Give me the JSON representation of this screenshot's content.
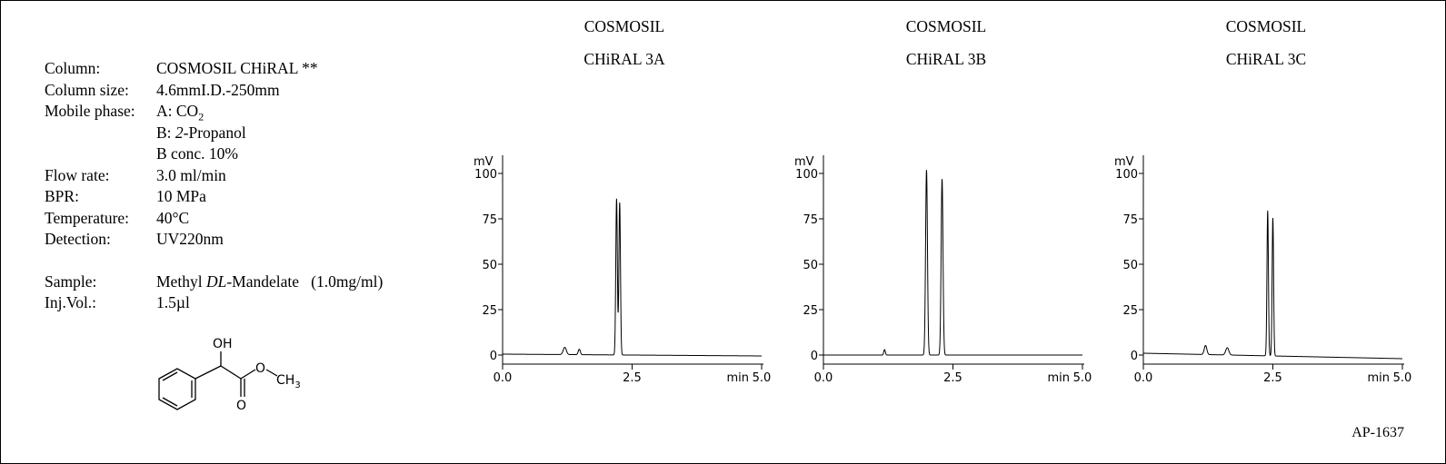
{
  "conditions": {
    "rows": [
      {
        "label": "Column:",
        "value": "COSMOSIL  CHiRAL **"
      },
      {
        "label": "Column size:",
        "value": "4.6mmI.D.-250mm"
      },
      {
        "label": "Mobile phase:",
        "value_prefix": "A: CO",
        "value_sub": "2"
      },
      {
        "label": "",
        "value_prefix": "B: ",
        "value_italic": "2",
        "value_suffix": "-Propanol"
      },
      {
        "label": "",
        "value": "B conc. 10%"
      },
      {
        "label": "Flow rate:",
        "value": "3.0 ml/min"
      },
      {
        "label": "BPR:",
        "value": "10 MPa"
      },
      {
        "label": "Temperature:",
        "value": "40°C"
      },
      {
        "label": "Detection:",
        "value": "UV220nm"
      }
    ],
    "sample": {
      "label": "Sample:",
      "prefix": "Methyl ",
      "italic": "DL",
      "suffix": "-Mandelate   (1.0mg/ml)"
    },
    "inj": {
      "label": "Inj.Vol.:",
      "value": "1.5µl"
    }
  },
  "structure": {
    "oh_label": "OH",
    "o_label": "O",
    "ch3_label": "CH",
    "ch3_sub": "3",
    "carbonyl_o_label": "O"
  },
  "footer": {
    "code": "AP-1637"
  },
  "chart_data": [
    {
      "type": "line",
      "title_line1": "COSMOSIL",
      "title_line2": "CHiRAL 3A",
      "ylabel": "mV",
      "xlabel": "min",
      "xlim": [
        0,
        5.0
      ],
      "ylim": [
        0,
        100
      ],
      "xticks": [
        0.0,
        2.5,
        5.0
      ],
      "xtick_labels": [
        "0.0",
        "2.5",
        "5.0"
      ],
      "yticks": [
        0,
        25,
        50,
        75,
        100
      ],
      "ytick_labels": [
        "0",
        "25",
        "50",
        "75",
        "100"
      ],
      "peaks": [
        {
          "rt": 1.2,
          "height": 4,
          "width": 0.03
        },
        {
          "rt": 1.48,
          "height": 3,
          "width": 0.02
        },
        {
          "rt": 2.2,
          "height": 86,
          "width": 0.015
        },
        {
          "rt": 2.26,
          "height": 84,
          "width": 0.015
        }
      ],
      "baseline": {
        "start": 0.5,
        "end": -0.5
      }
    },
    {
      "type": "line",
      "title_line1": "COSMOSIL",
      "title_line2": "CHiRAL 3B",
      "ylabel": "mV",
      "xlabel": "min",
      "xlim": [
        0,
        5.0
      ],
      "ylim": [
        0,
        100
      ],
      "xticks": [
        0.0,
        2.5,
        5.0
      ],
      "xtick_labels": [
        "0.0",
        "2.5",
        "5.0"
      ],
      "yticks": [
        0,
        25,
        50,
        75,
        100
      ],
      "ytick_labels": [
        "0",
        "25",
        "50",
        "75",
        "100"
      ],
      "peaks": [
        {
          "rt": 1.18,
          "height": 3,
          "width": 0.015
        },
        {
          "rt": 1.99,
          "height": 102,
          "width": 0.018
        },
        {
          "rt": 2.29,
          "height": 97,
          "width": 0.018
        }
      ],
      "baseline": {
        "start": 0,
        "end": 0
      }
    },
    {
      "type": "line",
      "title_line1": "COSMOSIL",
      "title_line2": "CHiRAL 3C",
      "ylabel": "mV",
      "xlabel": "min",
      "xlim": [
        0,
        5.0
      ],
      "ylim": [
        0,
        100
      ],
      "xticks": [
        0.0,
        2.5,
        5.0
      ],
      "xtick_labels": [
        "0.0",
        "2.5",
        "5.0"
      ],
      "yticks": [
        0,
        25,
        50,
        75,
        100
      ],
      "ytick_labels": [
        "0",
        "25",
        "50",
        "75",
        "100"
      ],
      "peaks": [
        {
          "rt": 1.2,
          "height": 5,
          "width": 0.025
        },
        {
          "rt": 1.62,
          "height": 4,
          "width": 0.03
        },
        {
          "rt": 2.4,
          "height": 80,
          "width": 0.014
        },
        {
          "rt": 2.5,
          "height": 76,
          "width": 0.014
        }
      ],
      "baseline": {
        "start": 1,
        "end": -2
      }
    }
  ]
}
